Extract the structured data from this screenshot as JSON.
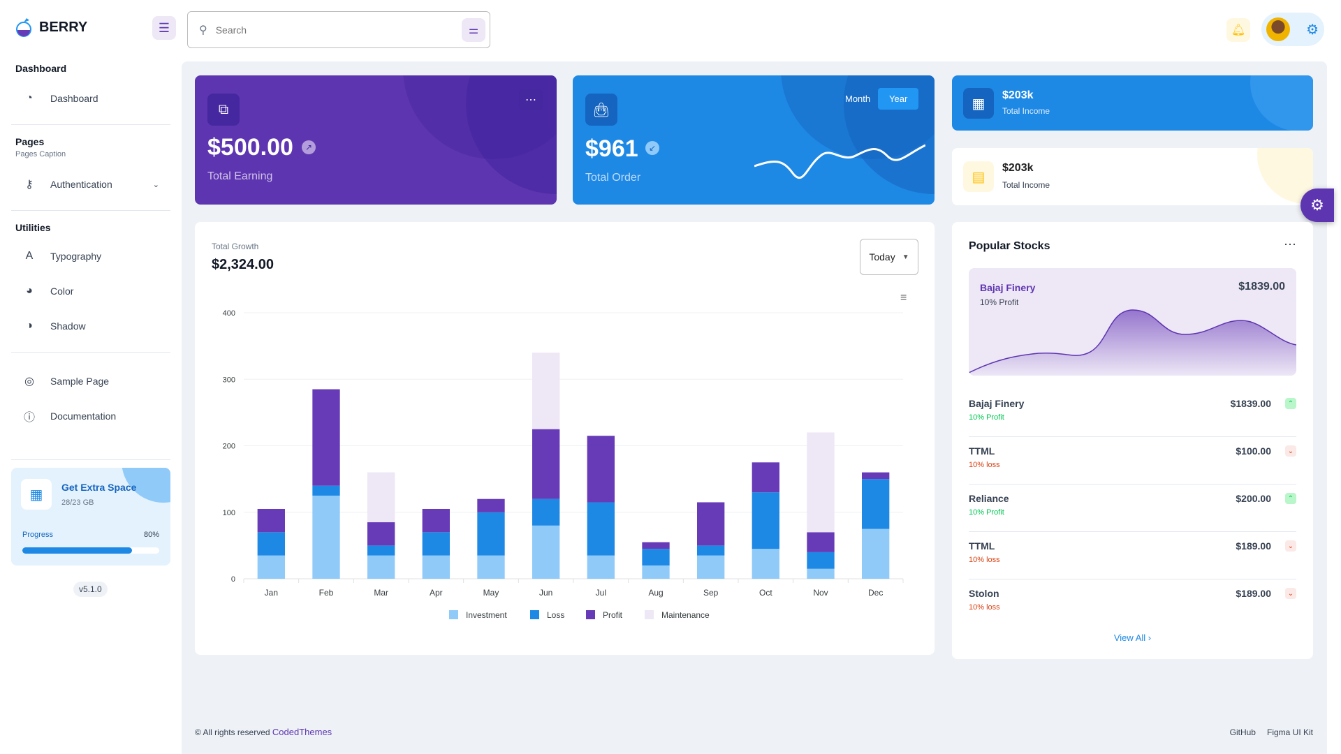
{
  "brand": {
    "name": "BERRY"
  },
  "search": {
    "placeholder": "Search"
  },
  "sidebar": {
    "sections": [
      {
        "title": "Dashboard"
      },
      {
        "title": "Pages",
        "caption": "Pages Caption"
      },
      {
        "title": "Utilities"
      }
    ],
    "items": [
      {
        "label": "Dashboard",
        "icon": "dashboard-icon"
      },
      {
        "label": "Authentication",
        "icon": "key-icon"
      },
      {
        "label": "Typography",
        "icon": "typography-icon"
      },
      {
        "label": "Color",
        "icon": "palette-icon"
      },
      {
        "label": "Shadow",
        "icon": "shadow-icon"
      },
      {
        "label": "Sample Page",
        "icon": "brand-chrome-icon"
      },
      {
        "label": "Documentation",
        "icon": "help-icon"
      }
    ],
    "promo": {
      "title": "Get Extra Space",
      "usage": "28/23 GB",
      "progress_label": "Progress",
      "progress_text": "80%",
      "progress": 80
    },
    "version": "v5.1.0"
  },
  "cards": {
    "earning": {
      "value": "$500.00",
      "label": "Total Earning"
    },
    "order": {
      "value": "$961",
      "label": "Total Order",
      "toggle": [
        "Month",
        "Year"
      ],
      "active": "Year"
    },
    "income1": {
      "value": "$203k",
      "label": "Total Income"
    },
    "income2": {
      "value": "$203k",
      "label": "Total Income"
    }
  },
  "growth": {
    "label": "Total Growth",
    "value": "$2,324.00",
    "period": "Today"
  },
  "chart_data": {
    "type": "bar",
    "stacked": true,
    "ylim": [
      0,
      400
    ],
    "yticks": [
      0,
      100,
      200,
      300,
      400
    ],
    "grid": true,
    "legend": "bottom",
    "categories": [
      "Jan",
      "Feb",
      "Mar",
      "Apr",
      "May",
      "Jun",
      "Jul",
      "Aug",
      "Sep",
      "Oct",
      "Nov",
      "Dec"
    ],
    "series": [
      {
        "name": "Investment",
        "color": "#90caf9",
        "values": [
          35,
          125,
          35,
          35,
          35,
          80,
          35,
          20,
          35,
          45,
          15,
          75
        ]
      },
      {
        "name": "Loss",
        "color": "#1e88e5",
        "values": [
          35,
          15,
          15,
          35,
          65,
          40,
          80,
          25,
          15,
          85,
          25,
          75
        ]
      },
      {
        "name": "Profit",
        "color": "#673ab7",
        "values": [
          35,
          145,
          35,
          35,
          20,
          105,
          100,
          10,
          65,
          45,
          30,
          10
        ]
      },
      {
        "name": "Maintenance",
        "color": "#ede7f6",
        "values": [
          0,
          0,
          75,
          0,
          0,
          115,
          0,
          0,
          0,
          0,
          150,
          0
        ]
      }
    ]
  },
  "stocks": {
    "title": "Popular Stocks",
    "featured": {
      "name": "Bajaj Finery",
      "status": "10% Profit",
      "price": "$1839.00"
    },
    "rows": [
      {
        "name": "Bajaj Finery",
        "price": "$1839.00",
        "status": "10% Profit",
        "trend": "up"
      },
      {
        "name": "TTML",
        "price": "$100.00",
        "status": "10% loss",
        "trend": "down"
      },
      {
        "name": "Reliance",
        "price": "$200.00",
        "status": "10% Profit",
        "trend": "up"
      },
      {
        "name": "TTML",
        "price": "$189.00",
        "status": "10% loss",
        "trend": "down"
      },
      {
        "name": "Stolon",
        "price": "$189.00",
        "status": "10% loss",
        "trend": "down"
      }
    ],
    "view_all": "View All"
  },
  "footer": {
    "copyright": "© All rights reserved",
    "brand": "CodedThemes",
    "links": [
      "GitHub",
      "Figma UI Kit"
    ]
  }
}
